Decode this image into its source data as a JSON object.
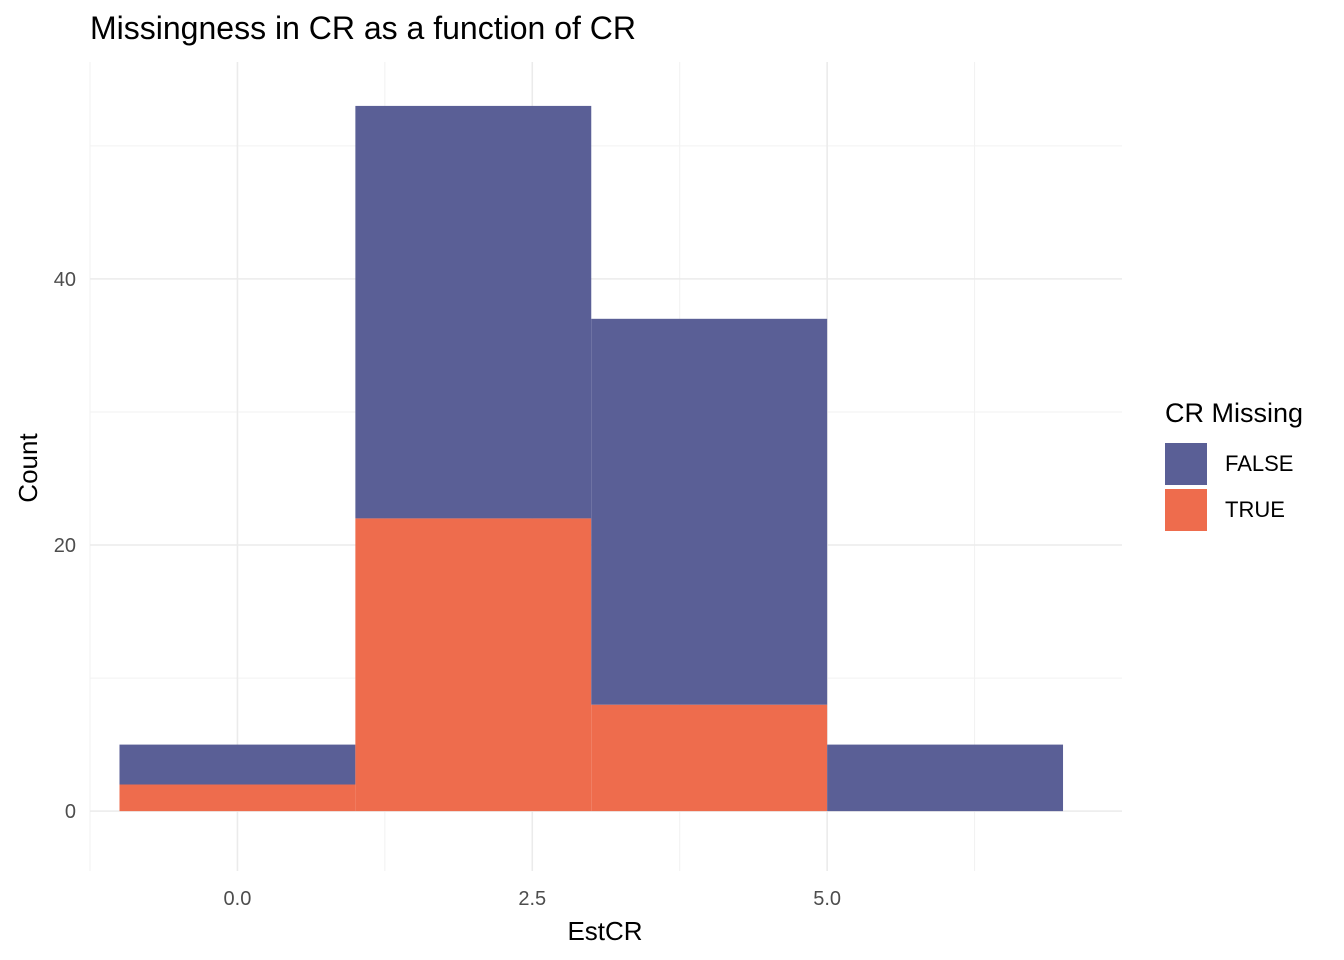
{
  "chart_data": {
    "type": "bar",
    "subtype": "stacked-histogram",
    "title": "Missingness in CR as a function of CR",
    "xlabel": "EstCR",
    "ylabel": "Count",
    "xlim": [
      -1.25,
      7.5
    ],
    "ylim": [
      -4.5,
      56.3
    ],
    "x_ticks": [
      0.0,
      2.5,
      5.0
    ],
    "x_tick_labels": [
      "0.0",
      "2.5",
      "5.0"
    ],
    "y_ticks": [
      0,
      20,
      40
    ],
    "y_tick_labels": [
      "0",
      "20",
      "40"
    ],
    "x_minor_ticks": [
      -1.25,
      1.25,
      3.75,
      6.25
    ],
    "y_minor_ticks": [
      10,
      30,
      50
    ],
    "grid": true,
    "legend": {
      "title": "CR Missing",
      "position": "right"
    },
    "bins": [
      {
        "x0": -1.0,
        "x1": 1.0
      },
      {
        "x0": 1.0,
        "x1": 3.0
      },
      {
        "x0": 3.0,
        "x1": 5.0
      },
      {
        "x0": 5.0,
        "x1": 7.0
      }
    ],
    "series": [
      {
        "name": "TRUE",
        "color": "#EE6C4D",
        "values": [
          2,
          22,
          8,
          0
        ]
      },
      {
        "name": "FALSE",
        "color": "#5A5F96",
        "values": [
          3,
          31,
          29,
          5
        ]
      }
    ],
    "legend_order": [
      "FALSE",
      "TRUE"
    ]
  }
}
